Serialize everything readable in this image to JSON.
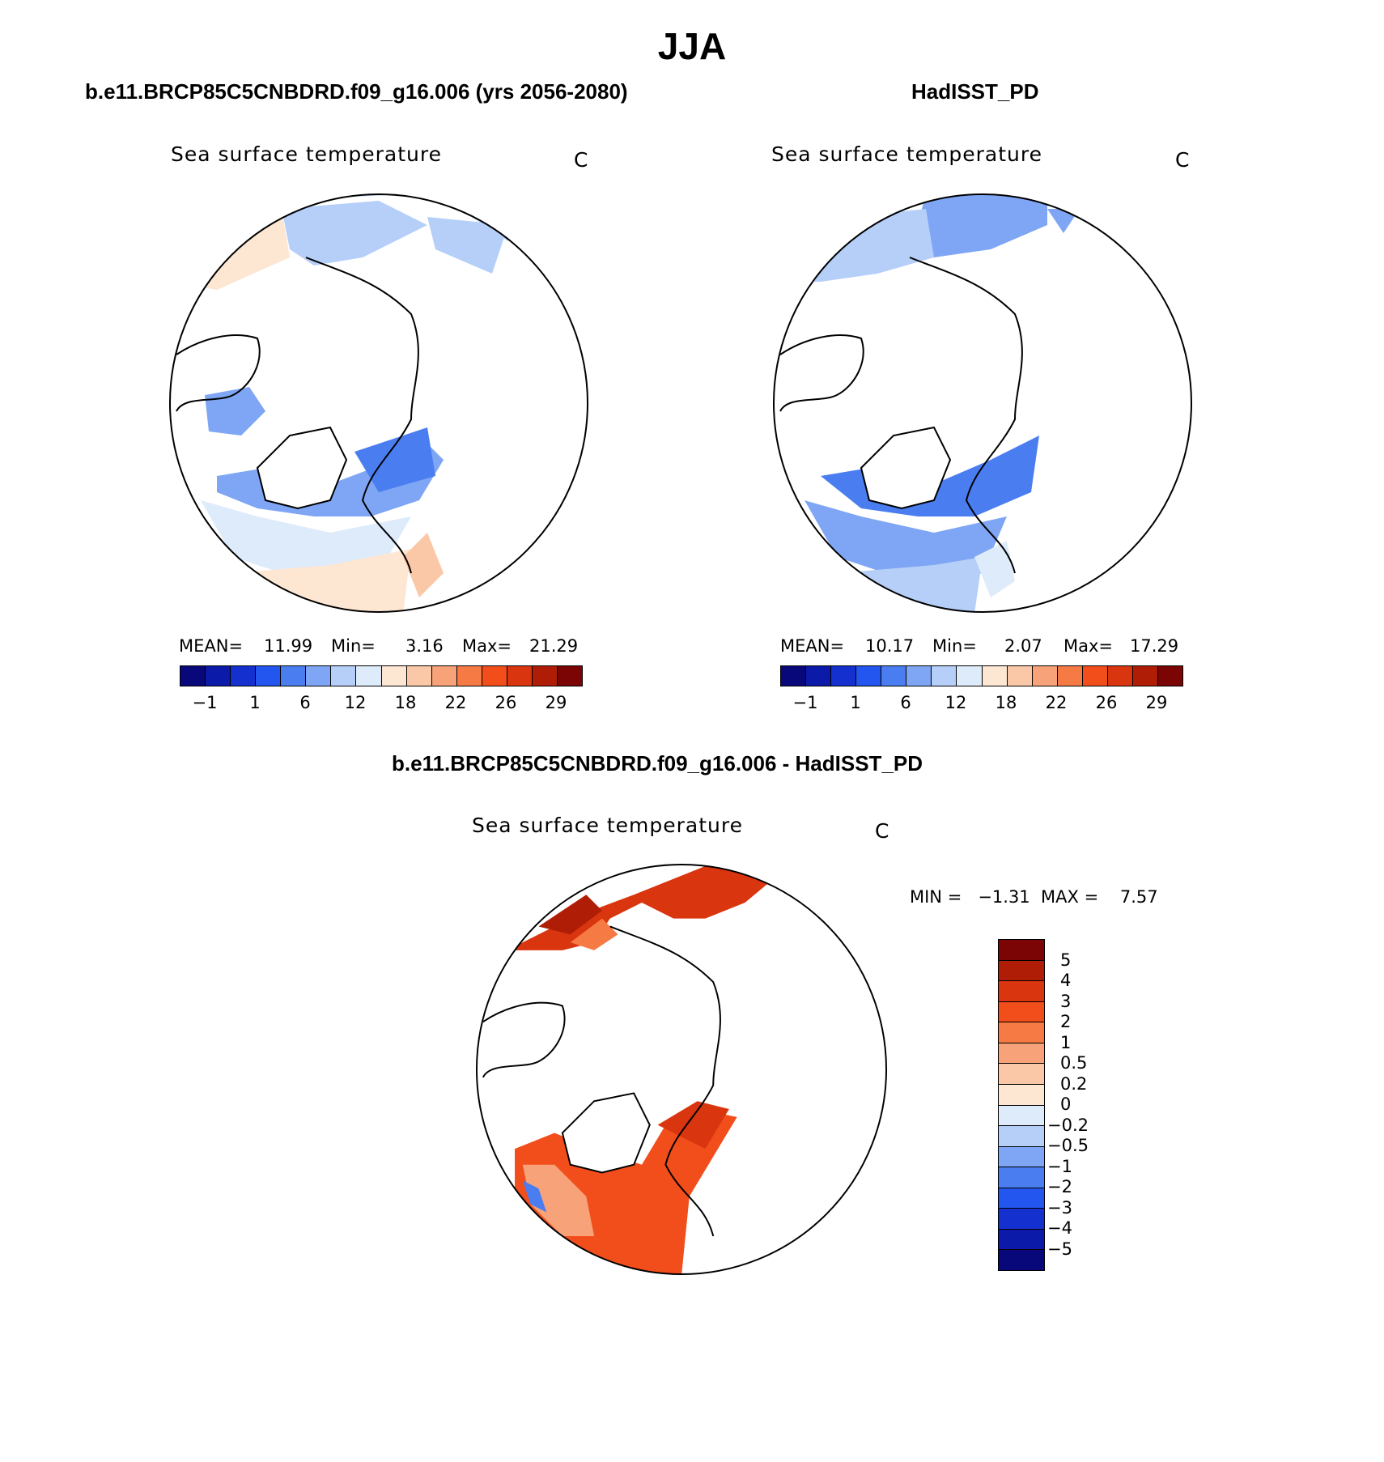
{
  "title": "JJA",
  "panels": [
    {
      "case_title": "b.e11.BRCP85C5CNBDRD.f09_g16.006 (yrs 2056-2080)",
      "label": "Sea surface temperature",
      "units": "C",
      "mean_label": "MEAN=",
      "mean": "11.99",
      "min_label": "Min=",
      "min": "3.16",
      "max_label": "Max=",
      "max": "21.29"
    },
    {
      "case_title": "HadISST_PD",
      "label": "Sea surface temperature",
      "units": "C",
      "mean_label": "MEAN=",
      "mean": "10.17",
      "min_label": "Min=",
      "min": "2.07",
      "max_label": "Max=",
      "max": "17.29"
    }
  ],
  "colorbar": {
    "colors": [
      "#08087a",
      "#0b1aa8",
      "#1431d0",
      "#2356ee",
      "#4a7ef0",
      "#7fa6f4",
      "#b5cff9",
      "#deebfb",
      "#fde6d2",
      "#fbc8a7",
      "#f7a278",
      "#f57a44",
      "#f24e1c",
      "#d9350e",
      "#b01d06",
      "#7b0404"
    ],
    "tick_labels": [
      "−1",
      "1",
      "6",
      "12",
      "18",
      "22",
      "26",
      "29"
    ]
  },
  "diff_panel": {
    "case_title": "b.e11.BRCP85C5CNBDRD.f09_g16.006 - HadISST_PD",
    "label": "Sea surface temperature",
    "units": "C",
    "minmax_text": "MIN =   −1.31  MAX =    7.57",
    "colorbar": {
      "colors": [
        "#7b0404",
        "#b01d06",
        "#d9350e",
        "#f24e1c",
        "#f57a44",
        "#f7a278",
        "#fbc8a7",
        "#fde6d2",
        "#deebfb",
        "#b5cff9",
        "#7fa6f4",
        "#4a7ef0",
        "#2356ee",
        "#1431d0",
        "#0b1aa8",
        "#08087a"
      ],
      "tick_labels": [
        "5",
        "4",
        "3",
        "2",
        "1",
        "0.5",
        "0.2",
        "0",
        "−0.2",
        "−0.5",
        "−1",
        "−2",
        "−3",
        "−4",
        "−5"
      ]
    }
  },
  "colors": {
    "land": "#ffffff",
    "coast": "#000000"
  }
}
